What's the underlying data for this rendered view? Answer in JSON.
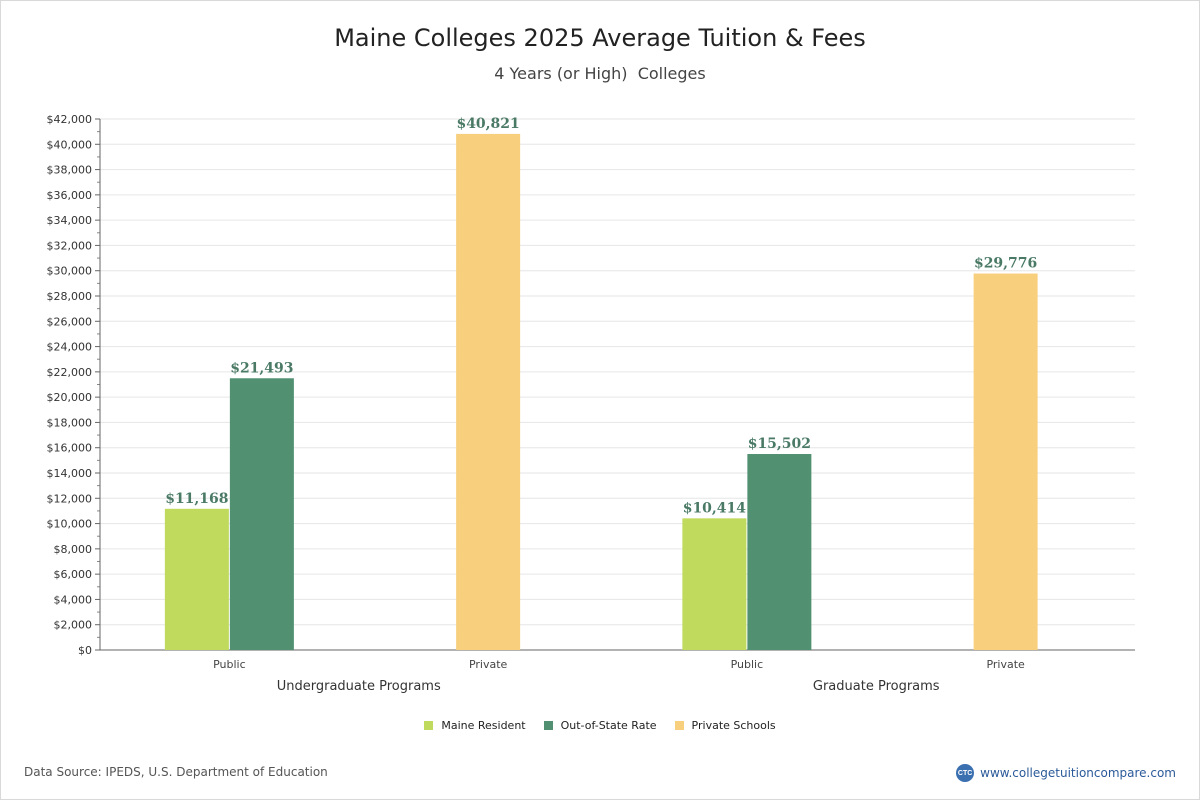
{
  "chart_data": {
    "type": "bar",
    "title": "Maine Colleges 2025 Average Tuition & Fees",
    "subtitle": "4 Years (or High)  Colleges",
    "ylim": [
      0,
      42000
    ],
    "ytick_step": 2000,
    "groups": [
      {
        "label": "Undergraduate Programs",
        "categories": [
          {
            "label": "Public",
            "bars": [
              {
                "series": "Maine Resident",
                "value": 11168,
                "label": "$11,168"
              },
              {
                "series": "Out-of-State Rate",
                "value": 21493,
                "label": "$21,493"
              }
            ]
          },
          {
            "label": "Private",
            "bars": [
              {
                "series": "Private Schools",
                "value": 40821,
                "label": "$40,821"
              }
            ]
          }
        ]
      },
      {
        "label": "Graduate Programs",
        "categories": [
          {
            "label": "Public",
            "bars": [
              {
                "series": "Maine Resident",
                "value": 10414,
                "label": "$10,414"
              },
              {
                "series": "Out-of-State Rate",
                "value": 15502,
                "label": "$15,502"
              }
            ]
          },
          {
            "label": "Private",
            "bars": [
              {
                "series": "Private Schools",
                "value": 29776,
                "label": "$29,776"
              }
            ]
          }
        ]
      }
    ],
    "series": [
      {
        "name": "Maine Resident",
        "color": "#c0da5e"
      },
      {
        "name": "Out-of-State Rate",
        "color": "#519172"
      },
      {
        "name": "Private Schools",
        "color": "#f8cf7c"
      }
    ],
    "grid": true,
    "legend": "bottom"
  },
  "footer": {
    "source": "Data Source: IPEDS, U.S. Department of Education",
    "brand_logo": "CTC",
    "brand_url": "www.collegetuitioncompare.com"
  }
}
